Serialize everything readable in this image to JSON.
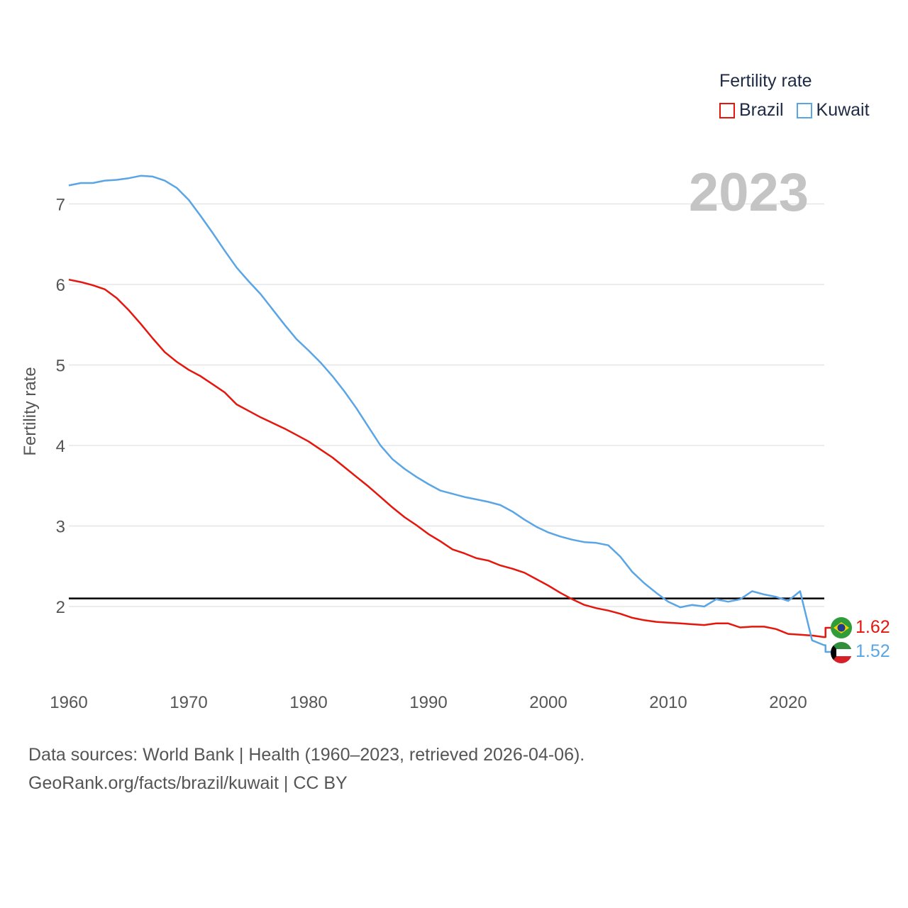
{
  "legend": {
    "title": "Fertility rate",
    "items": [
      {
        "label": "Brazil",
        "color": "#e6160c"
      },
      {
        "label": "Kuwait",
        "color": "#5aa5e6"
      }
    ]
  },
  "current_year": "2023",
  "end_labels": {
    "brazil": "1.62",
    "kuwait": "1.52"
  },
  "footer": {
    "sources": "Data sources: World Bank | Health (1960–2023, retrieved 2026-04-06).",
    "credit": "GeoRank.org/facts/brazil/kuwait | CC BY"
  },
  "chart_data": {
    "type": "line",
    "title": "",
    "xlabel": "",
    "ylabel": "Fertility rate",
    "xlim": [
      1960,
      2024
    ],
    "ylim": [
      1.2,
      7.7
    ],
    "xticks": [
      1960,
      1970,
      1980,
      1990,
      2000,
      2010,
      2020
    ],
    "yticks": [
      2,
      3,
      4,
      5,
      6,
      7
    ],
    "reference_line": 2.1,
    "x": [
      1960,
      1961,
      1962,
      1963,
      1964,
      1965,
      1966,
      1967,
      1968,
      1969,
      1970,
      1971,
      1972,
      1973,
      1974,
      1975,
      1976,
      1977,
      1978,
      1979,
      1980,
      1981,
      1982,
      1983,
      1984,
      1985,
      1986,
      1987,
      1988,
      1989,
      1990,
      1991,
      1992,
      1993,
      1994,
      1995,
      1996,
      1997,
      1998,
      1999,
      2000,
      2001,
      2002,
      2003,
      2004,
      2005,
      2006,
      2007,
      2008,
      2009,
      2010,
      2011,
      2012,
      2013,
      2014,
      2015,
      2016,
      2017,
      2018,
      2019,
      2020,
      2021,
      2022,
      2023
    ],
    "series": [
      {
        "name": "Brazil",
        "color": "#e6160c",
        "values": [
          6.06,
          6.03,
          5.99,
          5.94,
          5.83,
          5.68,
          5.51,
          5.33,
          5.16,
          5.04,
          4.94,
          4.86,
          4.76,
          4.66,
          4.51,
          4.43,
          4.35,
          4.28,
          4.21,
          4.13,
          4.05,
          3.95,
          3.85,
          3.73,
          3.61,
          3.49,
          3.36,
          3.23,
          3.11,
          3.01,
          2.9,
          2.81,
          2.71,
          2.66,
          2.6,
          2.57,
          2.51,
          2.47,
          2.42,
          2.34,
          2.26,
          2.17,
          2.09,
          2.02,
          1.98,
          1.95,
          1.91,
          1.86,
          1.83,
          1.81,
          1.8,
          1.79,
          1.78,
          1.77,
          1.79,
          1.79,
          1.74,
          1.75,
          1.75,
          1.72,
          1.66,
          1.65,
          1.64,
          1.62
        ]
      },
      {
        "name": "Kuwait",
        "color": "#5aa5e6",
        "values": [
          7.23,
          7.26,
          7.26,
          7.29,
          7.3,
          7.32,
          7.35,
          7.34,
          7.29,
          7.2,
          7.05,
          6.85,
          6.64,
          6.42,
          6.21,
          6.04,
          5.88,
          5.69,
          5.5,
          5.32,
          5.18,
          5.03,
          4.86,
          4.67,
          4.46,
          4.23,
          4.0,
          3.83,
          3.71,
          3.61,
          3.52,
          3.44,
          3.4,
          3.36,
          3.33,
          3.3,
          3.26,
          3.18,
          3.08,
          2.99,
          2.92,
          2.87,
          2.83,
          2.8,
          2.79,
          2.76,
          2.62,
          2.43,
          2.29,
          2.17,
          2.06,
          1.99,
          2.02,
          2.0,
          2.09,
          2.06,
          2.09,
          2.19,
          2.15,
          2.12,
          2.07,
          2.19,
          1.58,
          1.52
        ]
      }
    ]
  }
}
